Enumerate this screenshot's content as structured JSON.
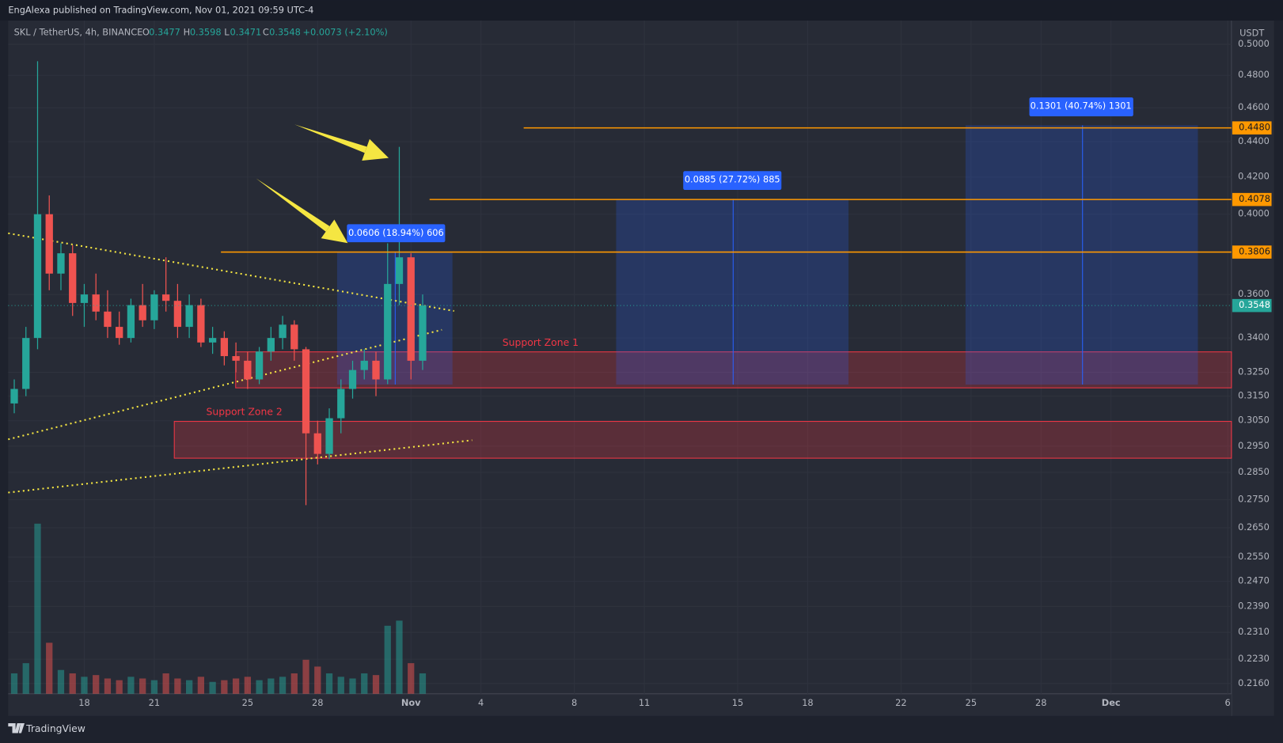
{
  "header": {
    "publisher": "EngAlexa published on TradingView.com, Nov 01, 2021 09:59 UTC-4"
  },
  "footer": {
    "brand": "TradingView"
  },
  "chart_data": {
    "type": "candlestick",
    "legend": {
      "symbol": "SKL / TetherUS, 4h, BINANCE",
      "o_label": "O",
      "open": 0.3477,
      "h_label": "H",
      "high": 0.3598,
      "l_label": "L",
      "low": 0.3471,
      "c_label": "C",
      "close": 0.3548,
      "change": "+0.0073 (+2.10%)"
    },
    "y_unit": "USDT",
    "log": true,
    "up_color": "#26a69a",
    "down_color": "#ef5350",
    "x": [
      15,
      15.5,
      16,
      16.5,
      17,
      17.5,
      18,
      18.5,
      19,
      19.5,
      20,
      20.5,
      21,
      21.5,
      22,
      22.5,
      23,
      23.5,
      24,
      24.5,
      25,
      25.5,
      26,
      26.5,
      27,
      27.5,
      28,
      28.5,
      29,
      29.5,
      30,
      30.5,
      31,
      31.5,
      32,
      32.5
    ],
    "open": [
      0.312,
      0.318,
      0.34,
      0.4,
      0.37,
      0.38,
      0.356,
      0.36,
      0.352,
      0.345,
      0.34,
      0.355,
      0.348,
      0.36,
      0.357,
      0.345,
      0.355,
      0.338,
      0.34,
      0.332,
      0.33,
      0.322,
      0.334,
      0.34,
      0.346,
      0.335,
      0.3,
      0.292,
      0.306,
      0.318,
      0.326,
      0.33,
      0.322,
      0.365,
      0.378,
      0.33
    ],
    "high": [
      0.322,
      0.345,
      0.489,
      0.41,
      0.385,
      0.384,
      0.365,
      0.37,
      0.362,
      0.352,
      0.358,
      0.365,
      0.362,
      0.378,
      0.365,
      0.36,
      0.358,
      0.345,
      0.343,
      0.338,
      0.334,
      0.336,
      0.345,
      0.35,
      0.348,
      0.336,
      0.305,
      0.31,
      0.322,
      0.33,
      0.335,
      0.334,
      0.385,
      0.437,
      0.38,
      0.36
    ],
    "low": [
      0.308,
      0.315,
      0.335,
      0.362,
      0.362,
      0.35,
      0.345,
      0.348,
      0.34,
      0.337,
      0.338,
      0.345,
      0.344,
      0.352,
      0.34,
      0.34,
      0.336,
      0.333,
      0.328,
      0.325,
      0.318,
      0.32,
      0.33,
      0.335,
      0.33,
      0.273,
      0.288,
      0.29,
      0.3,
      0.314,
      0.322,
      0.315,
      0.32,
      0.355,
      0.322,
      0.326
    ],
    "close": [
      0.318,
      0.34,
      0.4,
      0.37,
      0.38,
      0.356,
      0.36,
      0.352,
      0.345,
      0.34,
      0.355,
      0.348,
      0.36,
      0.357,
      0.345,
      0.355,
      0.338,
      0.34,
      0.332,
      0.33,
      0.322,
      0.334,
      0.34,
      0.346,
      0.335,
      0.3,
      0.292,
      0.306,
      0.318,
      0.326,
      0.33,
      0.322,
      0.365,
      0.378,
      0.33,
      0.3548
    ],
    "volume": [
      12,
      18,
      100,
      30,
      14,
      12,
      10,
      11,
      9,
      8,
      10,
      9,
      8,
      12,
      9,
      8,
      10,
      7,
      8,
      9,
      10,
      8,
      9,
      10,
      12,
      20,
      16,
      12,
      10,
      9,
      12,
      11,
      40,
      43,
      18,
      12
    ],
    "xlim": [
      14.74,
      67.16
    ],
    "xticks": [
      18,
      21,
      25,
      28,
      {
        "value": 32,
        "label": "Nov"
      },
      {
        "value": 35,
        "label": "4"
      },
      {
        "value": 39,
        "label": "8"
      },
      {
        "value": 42,
        "label": "11"
      },
      {
        "value": 46,
        "label": "15"
      },
      {
        "value": 49,
        "label": "18"
      },
      {
        "value": 53,
        "label": "22"
      },
      {
        "value": 56,
        "label": "25"
      },
      {
        "value": 59,
        "label": "28"
      },
      {
        "value": 62,
        "label": "Dec"
      },
      {
        "value": 67,
        "label": "6"
      }
    ],
    "ylim": [
      0.2131,
      0.5158
    ],
    "yticks": [
      {
        "value": 0.5,
        "label": "0.5000"
      },
      {
        "value": 0.48,
        "label": "0.4800"
      },
      {
        "value": 0.46,
        "label": "0.4600"
      },
      {
        "value": 0.44,
        "label": "0.4400"
      },
      {
        "value": 0.42,
        "label": "0.4200"
      },
      {
        "value": 0.4,
        "label": "0.4000"
      },
      {
        "value": 0.36,
        "label": "0.3600"
      },
      {
        "value": 0.34,
        "label": "0.3400"
      },
      {
        "value": 0.325,
        "label": "0.3250"
      },
      {
        "value": 0.315,
        "label": "0.3150"
      },
      {
        "value": 0.305,
        "label": "0.3050"
      },
      {
        "value": 0.295,
        "label": "0.2950"
      },
      {
        "value": 0.285,
        "label": "0.2850"
      },
      {
        "value": 0.275,
        "label": "0.2750"
      },
      {
        "value": 0.265,
        "label": "0.2650"
      },
      {
        "value": 0.255,
        "label": "0.2550"
      },
      {
        "value": 0.247,
        "label": "0.2470"
      },
      {
        "value": 0.239,
        "label": "0.2390"
      },
      {
        "value": 0.231,
        "label": "0.2310"
      },
      {
        "value": 0.223,
        "label": "0.2230"
      },
      {
        "value": 0.216,
        "label": "0.2160"
      }
    ],
    "last_price": 0.3548,
    "levels": [
      {
        "value": 0.448,
        "label": "0.4480"
      },
      {
        "value": 0.4078,
        "label": "0.4078"
      },
      {
        "value": 0.3806,
        "label": "0.3806"
      }
    ],
    "measurements": [
      "0.0606 (18.94%) 606",
      "0.0885 (27.72%) 885",
      "0.1301 (40.74%) 1301"
    ],
    "zones": [
      "Support Zone 1",
      "Support Zone 2"
    ]
  }
}
